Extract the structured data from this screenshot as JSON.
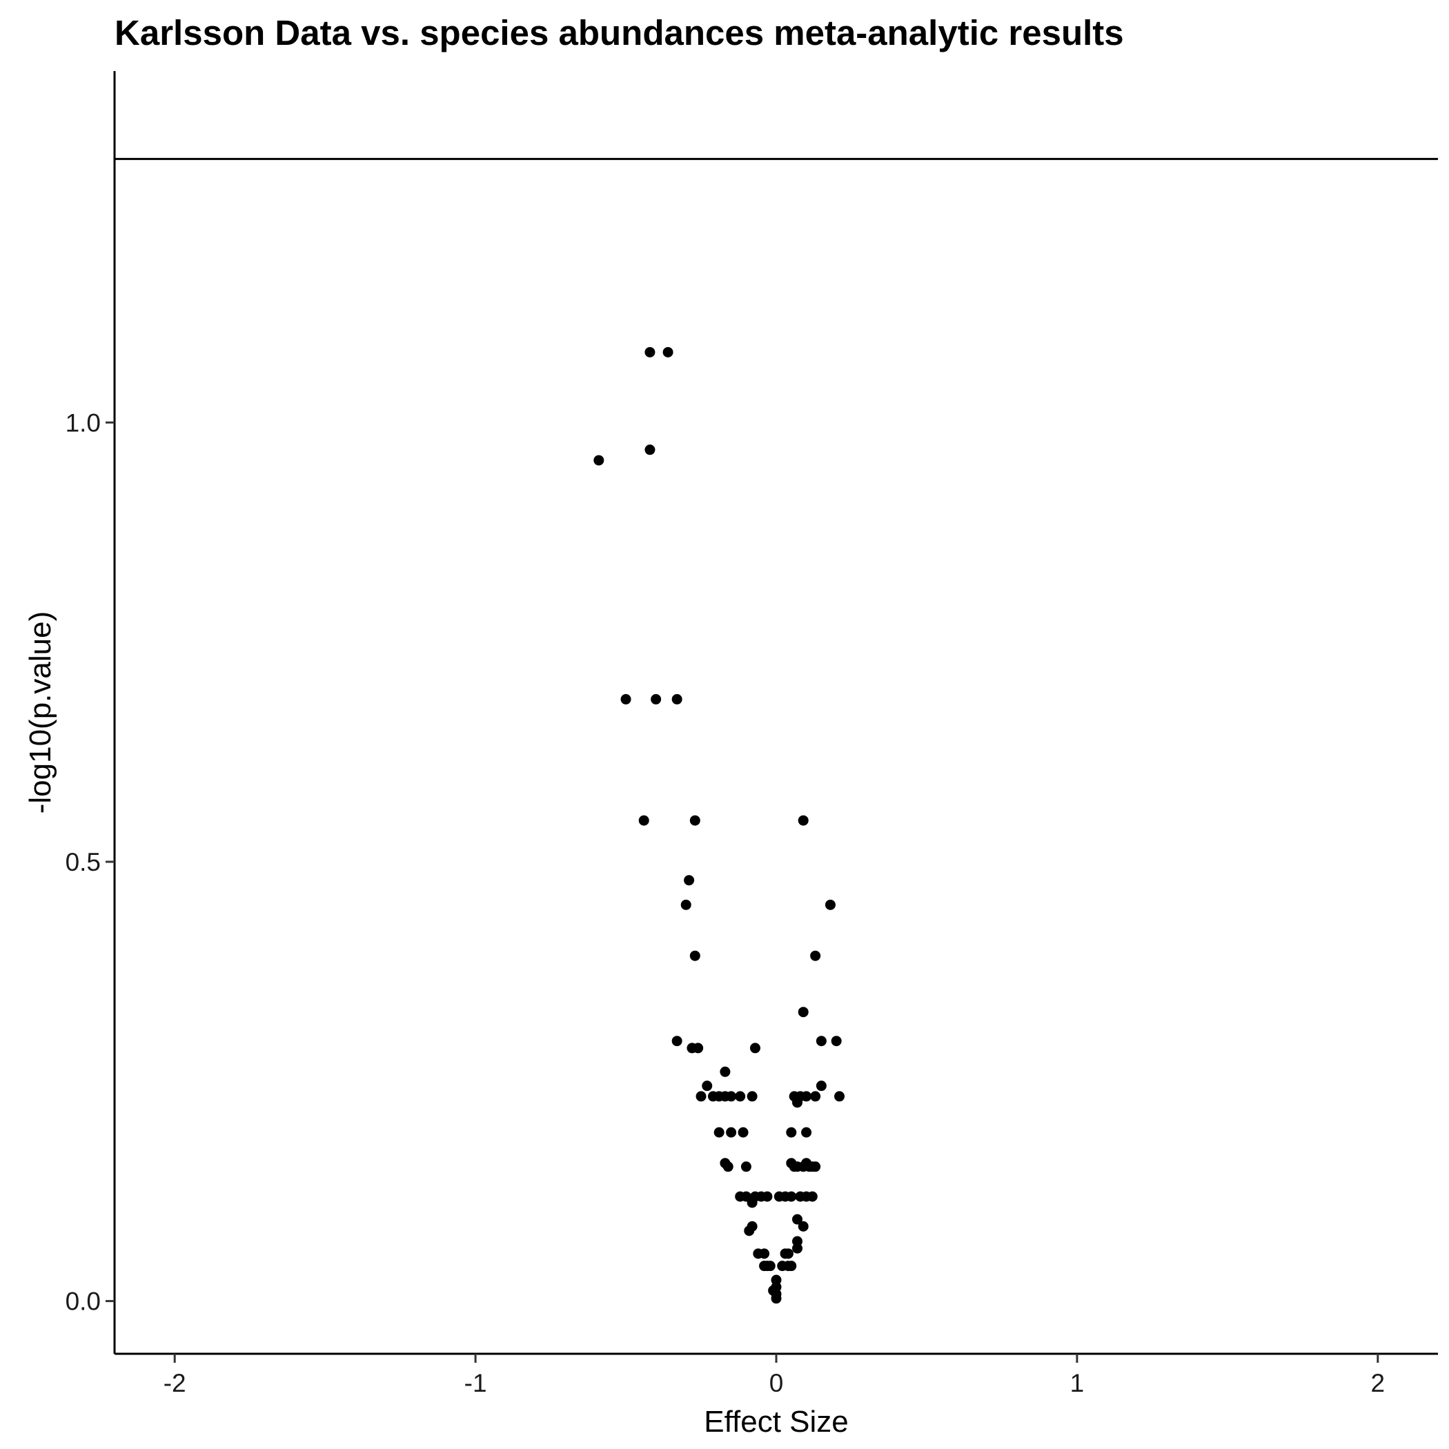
{
  "chart_data": {
    "type": "scatter",
    "title": "Karlsson Data vs. species abundances meta-analytic results",
    "xlabel": "Effect Size",
    "ylabel": "-log10(p.value)",
    "xlim": [
      -2.2,
      2.2
    ],
    "ylim": [
      -0.06,
      1.4
    ],
    "x_ticks": [
      -2,
      -1,
      0,
      1,
      2
    ],
    "x_tick_labels": [
      "-2",
      "-1",
      "0",
      "1",
      "2"
    ],
    "y_ticks": [
      0.0,
      0.5,
      1.0
    ],
    "y_tick_labels": [
      "0.0",
      "0.5",
      "1.0"
    ],
    "hline": 1.3,
    "grid": false,
    "point_color": "#000000",
    "points": [
      {
        "x": -0.42,
        "y": 1.08
      },
      {
        "x": -0.36,
        "y": 1.08
      },
      {
        "x": -0.59,
        "y": 0.957
      },
      {
        "x": -0.42,
        "y": 0.969
      },
      {
        "x": -0.5,
        "y": 0.685
      },
      {
        "x": -0.4,
        "y": 0.685
      },
      {
        "x": -0.33,
        "y": 0.685
      },
      {
        "x": -0.44,
        "y": 0.547
      },
      {
        "x": -0.27,
        "y": 0.547
      },
      {
        "x": 0.09,
        "y": 0.547
      },
      {
        "x": -0.29,
        "y": 0.479
      },
      {
        "x": -0.3,
        "y": 0.451
      },
      {
        "x": 0.18,
        "y": 0.451
      },
      {
        "x": -0.27,
        "y": 0.393
      },
      {
        "x": 0.13,
        "y": 0.393
      },
      {
        "x": 0.09,
        "y": 0.329
      },
      {
        "x": -0.33,
        "y": 0.296
      },
      {
        "x": -0.28,
        "y": 0.288
      },
      {
        "x": -0.26,
        "y": 0.288
      },
      {
        "x": -0.07,
        "y": 0.288
      },
      {
        "x": 0.15,
        "y": 0.296
      },
      {
        "x": 0.2,
        "y": 0.296
      },
      {
        "x": -0.17,
        "y": 0.261
      },
      {
        "x": -0.23,
        "y": 0.245
      },
      {
        "x": 0.15,
        "y": 0.245
      },
      {
        "x": -0.25,
        "y": 0.233
      },
      {
        "x": -0.21,
        "y": 0.233
      },
      {
        "x": -0.19,
        "y": 0.233
      },
      {
        "x": -0.17,
        "y": 0.233
      },
      {
        "x": -0.15,
        "y": 0.233
      },
      {
        "x": -0.12,
        "y": 0.233
      },
      {
        "x": -0.08,
        "y": 0.233
      },
      {
        "x": 0.06,
        "y": 0.233
      },
      {
        "x": 0.08,
        "y": 0.233
      },
      {
        "x": 0.1,
        "y": 0.233
      },
      {
        "x": 0.13,
        "y": 0.233
      },
      {
        "x": 0.21,
        "y": 0.233
      },
      {
        "x": 0.07,
        "y": 0.226
      },
      {
        "x": -0.19,
        "y": 0.192
      },
      {
        "x": -0.15,
        "y": 0.192
      },
      {
        "x": -0.11,
        "y": 0.192
      },
      {
        "x": 0.05,
        "y": 0.192
      },
      {
        "x": 0.1,
        "y": 0.192
      },
      {
        "x": -0.17,
        "y": 0.157
      },
      {
        "x": 0.05,
        "y": 0.157
      },
      {
        "x": 0.1,
        "y": 0.157
      },
      {
        "x": -0.16,
        "y": 0.153
      },
      {
        "x": -0.1,
        "y": 0.153
      },
      {
        "x": 0.06,
        "y": 0.153
      },
      {
        "x": 0.07,
        "y": 0.153
      },
      {
        "x": 0.09,
        "y": 0.153
      },
      {
        "x": 0.11,
        "y": 0.153
      },
      {
        "x": 0.12,
        "y": 0.153
      },
      {
        "x": 0.13,
        "y": 0.153
      },
      {
        "x": -0.12,
        "y": 0.119
      },
      {
        "x": -0.1,
        "y": 0.119
      },
      {
        "x": -0.07,
        "y": 0.119
      },
      {
        "x": -0.05,
        "y": 0.119
      },
      {
        "x": -0.03,
        "y": 0.119
      },
      {
        "x": 0.01,
        "y": 0.119
      },
      {
        "x": 0.03,
        "y": 0.119
      },
      {
        "x": 0.05,
        "y": 0.119
      },
      {
        "x": 0.08,
        "y": 0.119
      },
      {
        "x": 0.1,
        "y": 0.119
      },
      {
        "x": 0.12,
        "y": 0.119
      },
      {
        "x": -0.08,
        "y": 0.112
      },
      {
        "x": 0.07,
        "y": 0.093
      },
      {
        "x": -0.08,
        "y": 0.085
      },
      {
        "x": 0.09,
        "y": 0.085
      },
      {
        "x": -0.09,
        "y": 0.08
      },
      {
        "x": 0.07,
        "y": 0.068
      },
      {
        "x": 0.07,
        "y": 0.06
      },
      {
        "x": -0.06,
        "y": 0.054
      },
      {
        "x": -0.04,
        "y": 0.054
      },
      {
        "x": 0.03,
        "y": 0.054
      },
      {
        "x": 0.04,
        "y": 0.054
      },
      {
        "x": -0.04,
        "y": 0.04
      },
      {
        "x": -0.03,
        "y": 0.04
      },
      {
        "x": -0.02,
        "y": 0.04
      },
      {
        "x": 0.02,
        "y": 0.04
      },
      {
        "x": 0.04,
        "y": 0.04
      },
      {
        "x": 0.05,
        "y": 0.04
      },
      {
        "x": 0.0,
        "y": 0.024
      },
      {
        "x": 0.0,
        "y": 0.016
      },
      {
        "x": -0.01,
        "y": 0.012
      },
      {
        "x": 0.0,
        "y": 0.008
      },
      {
        "x": 0.0,
        "y": 0.003
      }
    ]
  }
}
